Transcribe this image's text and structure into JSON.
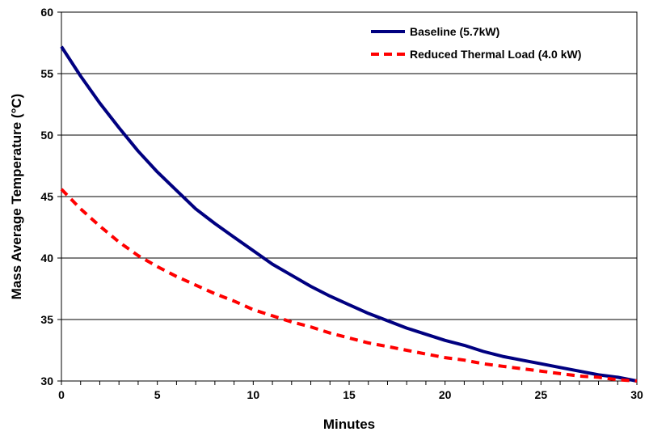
{
  "chart_data": {
    "type": "line",
    "title": "",
    "xlabel": "Minutes",
    "ylabel": "Mass Average Temperature (°C)",
    "xlim": [
      0,
      30
    ],
    "ylim": [
      30,
      60
    ],
    "x_ticks": [
      0,
      5,
      10,
      15,
      20,
      25,
      30
    ],
    "y_ticks": [
      30,
      35,
      40,
      45,
      50,
      55,
      60
    ],
    "grid": "horizontal",
    "legend_position": "top-right",
    "series": [
      {
        "name": "Baseline (5.7kW)",
        "color": "#000080",
        "style": "solid",
        "x": [
          0,
          1,
          2,
          3,
          4,
          5,
          6,
          7,
          8,
          9,
          10,
          11,
          12,
          13,
          14,
          15,
          16,
          17,
          18,
          19,
          20,
          21,
          22,
          23,
          24,
          25,
          26,
          27,
          28,
          29,
          30
        ],
        "y": [
          57.2,
          54.8,
          52.6,
          50.6,
          48.7,
          47.0,
          45.5,
          44.0,
          42.8,
          41.7,
          40.6,
          39.5,
          38.6,
          37.7,
          36.9,
          36.2,
          35.5,
          34.9,
          34.3,
          33.8,
          33.3,
          32.9,
          32.4,
          32.0,
          31.7,
          31.4,
          31.1,
          30.8,
          30.5,
          30.3,
          30.0
        ]
      },
      {
        "name": "Reduced Thermal Load (4.0 kW)",
        "color": "#ff0000",
        "style": "dashed",
        "x": [
          0,
          1,
          2,
          3,
          4,
          5,
          6,
          7,
          8,
          9,
          10,
          11,
          12,
          13,
          14,
          15,
          16,
          17,
          18,
          19,
          20,
          21,
          22,
          23,
          24,
          25,
          26,
          27,
          28,
          29,
          30
        ],
        "y": [
          45.6,
          44.0,
          42.6,
          41.3,
          40.2,
          39.3,
          38.5,
          37.8,
          37.1,
          36.5,
          35.8,
          35.3,
          34.8,
          34.4,
          33.9,
          33.5,
          33.1,
          32.8,
          32.5,
          32.2,
          31.9,
          31.7,
          31.4,
          31.2,
          31.0,
          30.8,
          30.6,
          30.4,
          30.3,
          30.1,
          30.0
        ]
      }
    ]
  }
}
